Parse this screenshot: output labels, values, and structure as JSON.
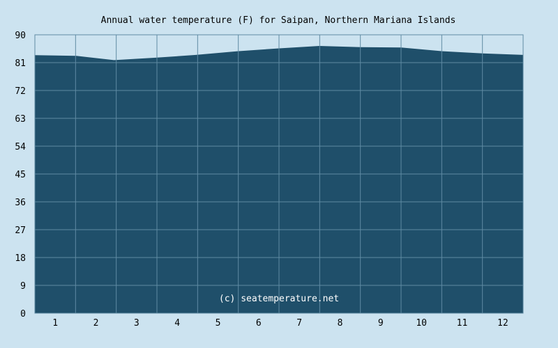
{
  "chart_data": {
    "type": "area",
    "title": "Annual water temperature (F) for Saipan, Northern Mariana Islands",
    "xlabel": "",
    "ylabel": "",
    "ylim": [
      0,
      90
    ],
    "y_ticks": [
      "0",
      "9",
      "18",
      "27",
      "36",
      "45",
      "54",
      "63",
      "72",
      "81",
      "90"
    ],
    "x_ticks": [
      "1",
      "2",
      "3",
      "4",
      "5",
      "6",
      "7",
      "8",
      "9",
      "10",
      "11",
      "12"
    ],
    "grid": true,
    "watermark": "(c) seatemperature.net",
    "colors": {
      "background": "#cce3f0",
      "area": "#1f4f6a",
      "grid": "#5f8ba3"
    },
    "series": [
      {
        "x": [
          1,
          32,
          60,
          91,
          121,
          152,
          182,
          213,
          244,
          274,
          305,
          335,
          365
        ],
        "values": [
          83.4,
          83.2,
          81.8,
          82.6,
          83.5,
          84.7,
          85.6,
          86.4,
          86.0,
          85.9,
          84.7,
          84.0,
          83.5
        ]
      }
    ]
  }
}
